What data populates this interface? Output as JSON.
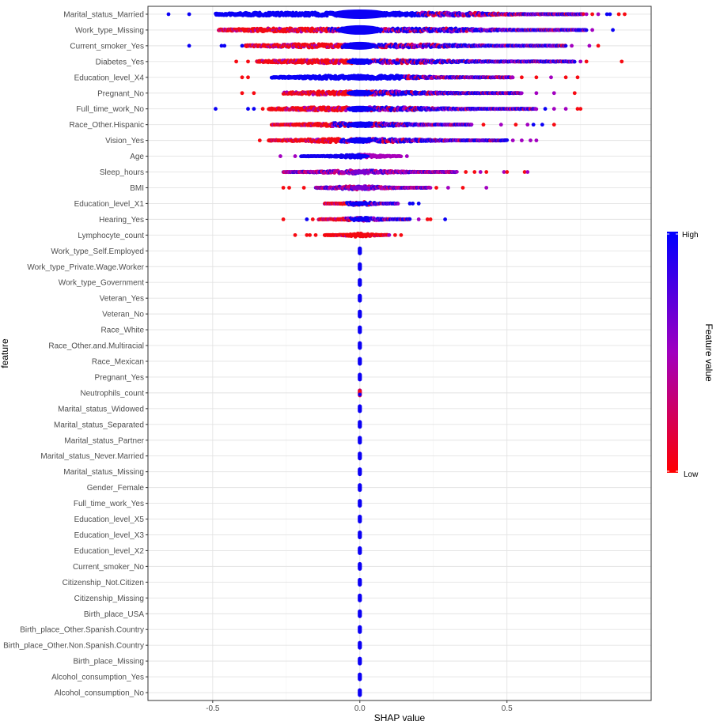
{
  "chart_data": {
    "type": "scatter",
    "subtype": "shap-summary-beeswarm",
    "xlabel": "SHAP value",
    "ylabel": "feature",
    "xlim": [
      -0.72,
      0.99
    ],
    "x_ticks": [
      -0.5,
      0.0,
      0.5
    ],
    "x_tick_labels": [
      "-0.5",
      "0.0",
      "0.5"
    ],
    "grid": true,
    "legend": {
      "title": "Feature value",
      "high_label": "High",
      "low_label": "Low",
      "high_color": "#0000ff",
      "low_color": "#ff0000",
      "mid_color": "#a000c0",
      "placement": "right"
    },
    "features": [
      {
        "name": "Marital_status_Married",
        "min": -0.65,
        "max": 0.9,
        "bulk_min": -0.49,
        "bulk_max": 0.76,
        "mix": "blue-left-mixed-right",
        "outliers": [
          [
            -0.65,
            "high"
          ],
          [
            -0.58,
            "high"
          ],
          [
            0.77,
            "mid"
          ],
          [
            0.79,
            "low"
          ],
          [
            0.81,
            "mid"
          ],
          [
            0.84,
            "high"
          ],
          [
            0.85,
            "high"
          ],
          [
            0.88,
            "low"
          ],
          [
            0.9,
            "low"
          ]
        ],
        "spread_px": 9
      },
      {
        "name": "Work_type_Missing",
        "min": -0.48,
        "max": 0.86,
        "bulk_min": -0.48,
        "bulk_max": 0.77,
        "mix": "red-left-blue-right",
        "outliers": [
          [
            0.79,
            "mid"
          ],
          [
            0.86,
            "high"
          ]
        ],
        "spread_px": 7
      },
      {
        "name": "Current_smoker_Yes",
        "min": -0.58,
        "max": 0.81,
        "bulk_min": -0.39,
        "bulk_max": 0.7,
        "mix": "red-left-blue-right",
        "outliers": [
          [
            -0.58,
            "high"
          ],
          [
            -0.47,
            "high"
          ],
          [
            -0.46,
            "high"
          ],
          [
            -0.4,
            "high"
          ],
          [
            0.72,
            "mid"
          ],
          [
            0.78,
            "mid"
          ],
          [
            0.81,
            "low"
          ]
        ],
        "spread_px": 5
      },
      {
        "name": "Diabetes_Yes",
        "min": -0.42,
        "max": 0.89,
        "bulk_min": -0.35,
        "bulk_max": 0.73,
        "mix": "red-left-blue-right",
        "outliers": [
          [
            -0.42,
            "low"
          ],
          [
            -0.38,
            "low"
          ],
          [
            0.75,
            "mid"
          ],
          [
            0.77,
            "low"
          ],
          [
            0.89,
            "low"
          ]
        ],
        "spread_px": 4
      },
      {
        "name": "Education_level_X4",
        "min": -0.4,
        "max": 0.74,
        "bulk_min": -0.3,
        "bulk_max": 0.52,
        "mix": "blue-left-mixed-right",
        "outliers": [
          [
            -0.4,
            "low"
          ],
          [
            -0.38,
            "low"
          ],
          [
            0.55,
            "low"
          ],
          [
            0.6,
            "low"
          ],
          [
            0.65,
            "mid"
          ],
          [
            0.7,
            "low"
          ],
          [
            0.74,
            "low"
          ]
        ],
        "spread_px": 4
      },
      {
        "name": "Pregnant_No",
        "min": -0.4,
        "max": 0.73,
        "bulk_min": -0.26,
        "bulk_max": 0.55,
        "mix": "red-left-blue-right",
        "outliers": [
          [
            -0.4,
            "low"
          ],
          [
            -0.36,
            "low"
          ],
          [
            0.6,
            "mid"
          ],
          [
            0.66,
            "mid"
          ],
          [
            0.73,
            "low"
          ]
        ],
        "spread_px": 4
      },
      {
        "name": "Full_time_work_No",
        "min": -0.49,
        "max": 0.75,
        "bulk_min": -0.31,
        "bulk_max": 0.6,
        "mix": "red-left-blue-right",
        "outliers": [
          [
            -0.49,
            "high"
          ],
          [
            -0.38,
            "high"
          ],
          [
            -0.36,
            "high"
          ],
          [
            -0.33,
            "low"
          ],
          [
            0.63,
            "high"
          ],
          [
            0.66,
            "mid"
          ],
          [
            0.7,
            "mid"
          ],
          [
            0.74,
            "low"
          ],
          [
            0.75,
            "low"
          ]
        ],
        "spread_px": 4
      },
      {
        "name": "Race_Other.Hispanic",
        "min": -0.36,
        "max": 0.66,
        "bulk_min": -0.3,
        "bulk_max": 0.38,
        "mix": "red-left-blue-right",
        "outliers": [
          [
            0.42,
            "low"
          ],
          [
            0.48,
            "mid"
          ],
          [
            0.53,
            "low"
          ],
          [
            0.57,
            "mid"
          ],
          [
            0.59,
            "high"
          ],
          [
            0.62,
            "high"
          ],
          [
            0.66,
            "low"
          ]
        ],
        "spread_px": 4
      },
      {
        "name": "Vision_Yes",
        "min": -0.34,
        "max": 0.6,
        "bulk_min": -0.31,
        "bulk_max": 0.5,
        "mix": "red-left-blue-right",
        "outliers": [
          [
            -0.34,
            "low"
          ],
          [
            0.52,
            "mid"
          ],
          [
            0.55,
            "mid"
          ],
          [
            0.58,
            "mid"
          ],
          [
            0.6,
            "mid"
          ]
        ],
        "spread_px": 4
      },
      {
        "name": "Age",
        "min": -0.27,
        "max": 0.16,
        "bulk_min": -0.2,
        "bulk_max": 0.14,
        "mix": "blue-left-purple-right",
        "outliers": [
          [
            -0.27,
            "mid"
          ],
          [
            -0.22,
            "mid"
          ],
          [
            0.16,
            "mid"
          ]
        ],
        "spread_px": 3
      },
      {
        "name": "Sleep_hours",
        "min": -0.3,
        "max": 0.57,
        "bulk_min": -0.26,
        "bulk_max": 0.33,
        "mix": "purple-mixed",
        "outliers": [
          [
            0.36,
            "low"
          ],
          [
            0.39,
            "low"
          ],
          [
            0.41,
            "mid"
          ],
          [
            0.43,
            "low"
          ],
          [
            0.49,
            "mid"
          ],
          [
            0.5,
            "low"
          ],
          [
            0.56,
            "low"
          ],
          [
            0.57,
            "mid"
          ]
        ],
        "spread_px": 3
      },
      {
        "name": "BMI",
        "min": -0.26,
        "max": 0.43,
        "bulk_min": -0.15,
        "bulk_max": 0.24,
        "mix": "purple-mixed",
        "outliers": [
          [
            -0.26,
            "low"
          ],
          [
            -0.24,
            "low"
          ],
          [
            -0.19,
            "low"
          ],
          [
            0.26,
            "low"
          ],
          [
            0.3,
            "mid"
          ],
          [
            0.35,
            "low"
          ],
          [
            0.43,
            "mid"
          ]
        ],
        "spread_px": 3
      },
      {
        "name": "Education_level_X1",
        "min": -0.12,
        "max": 0.2,
        "bulk_min": -0.12,
        "bulk_max": 0.13,
        "mix": "red-left-blue-right",
        "outliers": [
          [
            0.17,
            "high"
          ],
          [
            0.18,
            "high"
          ],
          [
            0.2,
            "high"
          ]
        ],
        "spread_px": 3
      },
      {
        "name": "Hearing_Yes",
        "min": -0.26,
        "max": 0.29,
        "bulk_min": -0.14,
        "bulk_max": 0.17,
        "mix": "red-left-blue-right",
        "outliers": [
          [
            -0.26,
            "low"
          ],
          [
            -0.18,
            "high"
          ],
          [
            -0.16,
            "low"
          ],
          [
            0.2,
            "mid"
          ],
          [
            0.23,
            "low"
          ],
          [
            0.24,
            "low"
          ],
          [
            0.29,
            "high"
          ]
        ],
        "spread_px": 3
      },
      {
        "name": "Lymphocyte_count",
        "min": -0.22,
        "max": 0.14,
        "bulk_min": -0.12,
        "bulk_max": 0.1,
        "mix": "red",
        "outliers": [
          [
            -0.22,
            "low"
          ],
          [
            -0.18,
            "low"
          ],
          [
            -0.17,
            "low"
          ],
          [
            -0.15,
            "low"
          ],
          [
            0.12,
            "low"
          ],
          [
            0.14,
            "low"
          ]
        ],
        "spread_px": 3
      },
      {
        "name": "Work_type_Self.Employed",
        "zero": true
      },
      {
        "name": "Work_type_Private.Wage.Worker",
        "zero": true
      },
      {
        "name": "Work_type_Government",
        "zero": true
      },
      {
        "name": "Veteran_Yes",
        "zero": true
      },
      {
        "name": "Veteran_No",
        "zero": true
      },
      {
        "name": "Race_White",
        "zero": true
      },
      {
        "name": "Race_Other.and.Multiracial",
        "zero": true
      },
      {
        "name": "Race_Mexican",
        "zero": true
      },
      {
        "name": "Pregnant_Yes",
        "zero": true
      },
      {
        "name": "Neutrophils_count",
        "zero": true,
        "zero_mixed": true
      },
      {
        "name": "Marital_status_Widowed",
        "zero": true
      },
      {
        "name": "Marital_status_Separated",
        "zero": true
      },
      {
        "name": "Marital_status_Partner",
        "zero": true
      },
      {
        "name": "Marital_status_Never.Married",
        "zero": true
      },
      {
        "name": "Marital_status_Missing",
        "zero": true
      },
      {
        "name": "Gender_Female",
        "zero": true
      },
      {
        "name": "Full_time_work_Yes",
        "zero": true
      },
      {
        "name": "Education_level_X5",
        "zero": true
      },
      {
        "name": "Education_level_X3",
        "zero": true
      },
      {
        "name": "Education_level_X2",
        "zero": true
      },
      {
        "name": "Current_smoker_No",
        "zero": true
      },
      {
        "name": "Citizenship_Not.Citizen",
        "zero": true
      },
      {
        "name": "Citizenship_Missing",
        "zero": true
      },
      {
        "name": "Birth_place_USA",
        "zero": true
      },
      {
        "name": "Birth_place_Other.Spanish.Country",
        "zero": true
      },
      {
        "name": "Birth_place_Other.Non.Spanish.Country",
        "zero": true
      },
      {
        "name": "Birth_place_Missing",
        "zero": true
      },
      {
        "name": "Alcohol_consumption_Yes",
        "zero": true
      },
      {
        "name": "Alcohol_consumption_No",
        "zero": true
      }
    ]
  }
}
